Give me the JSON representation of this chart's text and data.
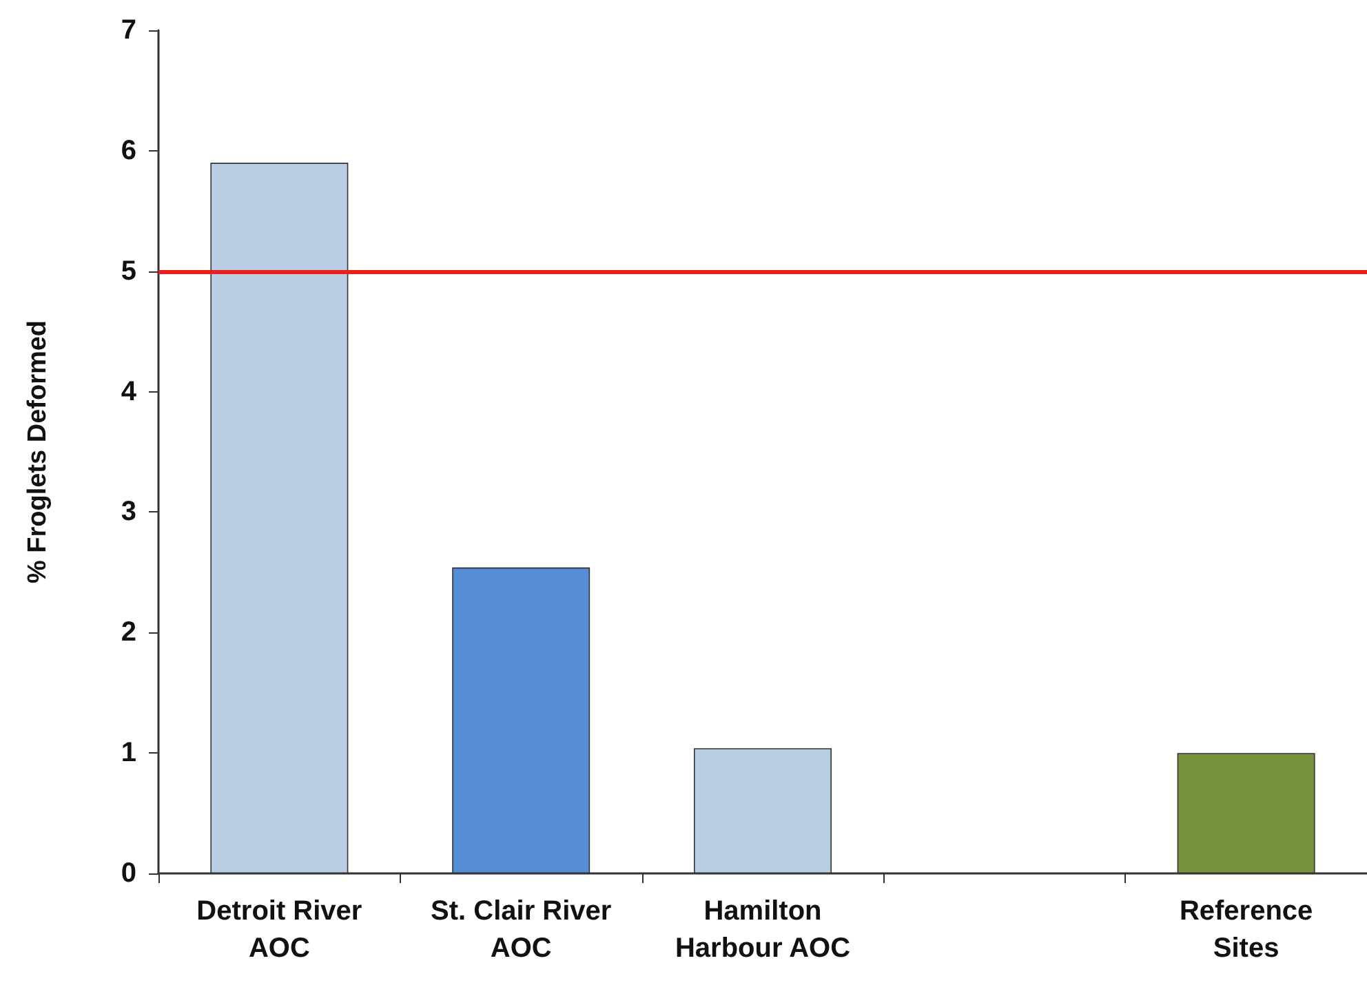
{
  "chart_data": {
    "type": "bar",
    "ylabel": "% Froglets Deformed",
    "categories": [
      "Detroit River\nAOC",
      "St. Clair River\nAOC",
      "Hamilton\nHarbour AOC",
      null,
      "Reference\nSites"
    ],
    "values": [
      5.9,
      2.54,
      1.04,
      null,
      1.0
    ],
    "colors": [
      "#b9cde5",
      "#558ed5",
      "#b9cde5",
      "#b9cde5",
      "#77933c"
    ],
    "ylim": [
      0,
      7
    ],
    "yticks": [
      0,
      1,
      2,
      3,
      4,
      5,
      6,
      7
    ],
    "grid": false,
    "ref_lines": [
      {
        "axis": "y",
        "value": 5,
        "color": "#e8211f",
        "line_style": "solid"
      }
    ]
  }
}
